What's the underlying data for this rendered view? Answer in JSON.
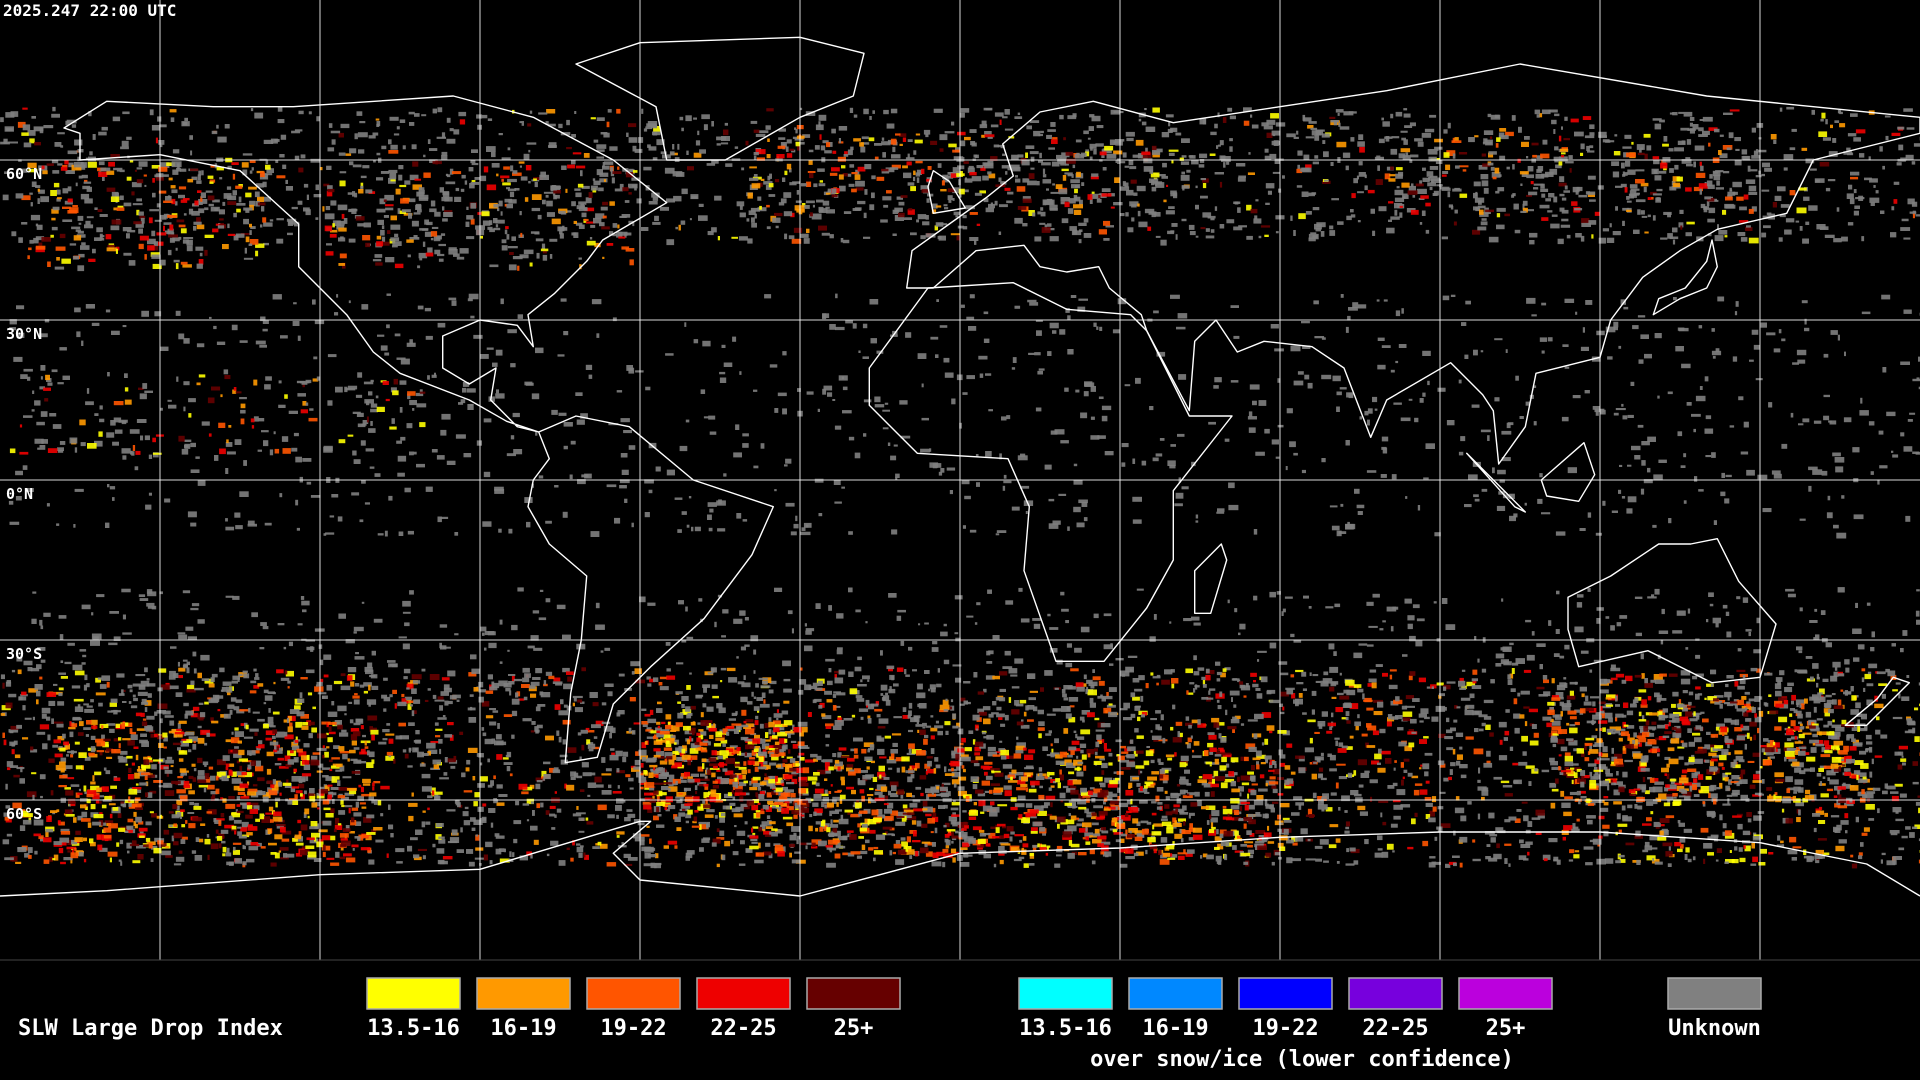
{
  "header": {
    "timestamp": "2025.247 22:00 UTC"
  },
  "map": {
    "latitude_labels": [
      "60°N",
      "30°N",
      "0°N",
      "30°S",
      "60°S"
    ]
  },
  "legend": {
    "title": "SLW Large Drop Index",
    "groups": [
      {
        "items": [
          {
            "label": "13.5-16",
            "color": "#ffff00"
          },
          {
            "label": "16-19",
            "color": "#ff9900"
          },
          {
            "label": "19-22",
            "color": "#ff5500"
          },
          {
            "label": "22-25",
            "color": "#ee0000"
          },
          {
            "label": "25+",
            "color": "#660000"
          }
        ]
      },
      {
        "items": [
          {
            "label": "13.5-16",
            "color": "#00ffff"
          },
          {
            "label": "16-19",
            "color": "#0088ff"
          },
          {
            "label": "19-22",
            "color": "#0000ff"
          },
          {
            "label": "22-25",
            "color": "#7700dd"
          },
          {
            "label": "25+",
            "color": "#bb00dd"
          }
        ],
        "note": "over snow/ice (lower confidence)"
      },
      {
        "items": [
          {
            "label": "Unknown",
            "color": "#808080"
          }
        ]
      }
    ]
  }
}
